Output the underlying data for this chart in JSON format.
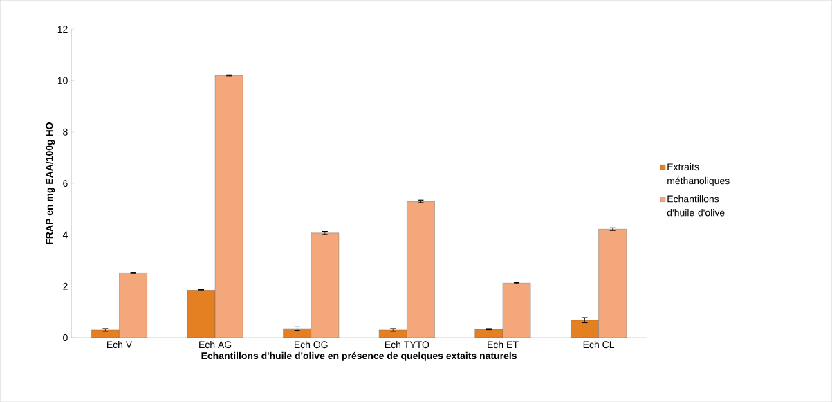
{
  "chart_data": {
    "type": "bar",
    "xlabel": "Echantillons d'huile d'olive en présence de quelques extaits naturels",
    "ylabel": "FRAP en mg EAA/100g HO",
    "categories": [
      "Ech V",
      "Ech AG",
      "Ech OG",
      "Ech TYTO",
      "Ech ET",
      "Ech CL"
    ],
    "series": [
      {
        "name": "Extraits méthanoliques",
        "color": "#e47f22",
        "values": [
          0.3,
          1.85,
          0.35,
          0.3,
          0.33,
          0.68
        ],
        "errors": [
          0.05,
          0.02,
          0.07,
          0.05,
          0.02,
          0.1
        ]
      },
      {
        "name": "Echantillons d'huile d'olive",
        "color": "#f4a77a",
        "values": [
          2.52,
          10.2,
          4.07,
          5.3,
          2.12,
          4.22
        ],
        "errors": [
          0.02,
          0.02,
          0.06,
          0.05,
          0.02,
          0.05
        ]
      }
    ],
    "ylim": [
      0,
      12
    ],
    "yticks": [
      0,
      2,
      4,
      6,
      8,
      10,
      12
    ],
    "legend": "right",
    "grid": false
  }
}
